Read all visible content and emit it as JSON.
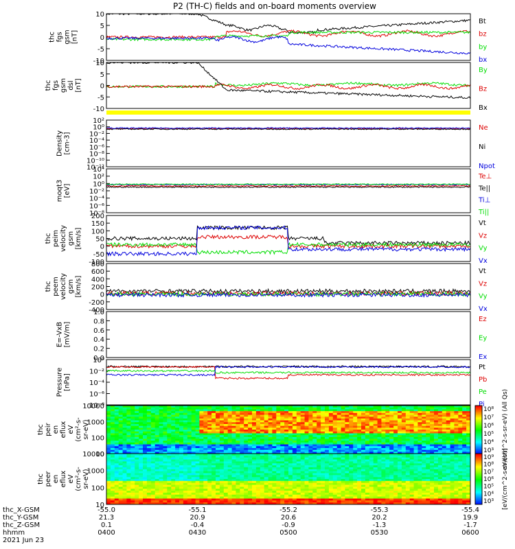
{
  "title": "P2 (TH-C) fields and on-board moments overview",
  "colors": {
    "black": "#000000",
    "red": "#dd0000",
    "green": "#00dd00",
    "blue": "#0000dd",
    "yellow": "#ffff00"
  },
  "chart_data": [
    {
      "type": "line",
      "panel": "fgs_gsm",
      "ylabel": [
        "thc",
        "fgs",
        "gsm",
        "[nT]"
      ],
      "ylim": [
        -10,
        10
      ],
      "yticks": [
        "10",
        "5",
        "0",
        "-5",
        "-10"
      ],
      "series": [
        {
          "name": "Bt",
          "color": "black"
        },
        {
          "name": "bz",
          "color": "red"
        },
        {
          "name": "by",
          "color": "green"
        },
        {
          "name": "bx",
          "color": "blue"
        }
      ]
    },
    {
      "type": "line",
      "panel": "fgs_gsm_dsl",
      "ylabel": [
        "thc",
        "fgs",
        "gsm",
        "dsl",
        "[nT]"
      ],
      "ylim": [
        -10,
        10
      ],
      "yticks": [
        "10",
        "5",
        "0",
        "-5",
        "-10"
      ],
      "series": [
        {
          "name": "By",
          "color": "green"
        },
        {
          "name": "Bz",
          "color": "red"
        },
        {
          "name": "Bx",
          "color": "black"
        }
      ]
    },
    {
      "type": "line",
      "panel": "density",
      "ylabel": [
        "Density",
        "[cm-3]"
      ],
      "log": true,
      "yticks": [
        "10²",
        "10⁰",
        "10⁻²",
        "10⁻⁴",
        "10⁻⁶",
        "10⁻⁸",
        "10⁻¹⁰",
        "10⁻¹²"
      ],
      "series": [
        {
          "name": "Ne",
          "color": "red"
        },
        {
          "name": "Ni",
          "color": "black"
        },
        {
          "name": "Npot",
          "color": "blue"
        }
      ]
    },
    {
      "type": "line",
      "panel": "moqt",
      "ylabel": [
        "moqt3",
        "[eV]"
      ],
      "log": true,
      "yticks": [
        "10⁴",
        "10²",
        "10⁰",
        "10⁻²",
        "10⁻⁴",
        "10⁻⁶",
        "10⁻⁸"
      ],
      "series": [
        {
          "name": "Te⊥",
          "color": "red"
        },
        {
          "name": "Te||",
          "color": "black"
        },
        {
          "name": "Ti⊥",
          "color": "blue"
        },
        {
          "name": "Ti||",
          "color": "green"
        }
      ]
    },
    {
      "type": "line",
      "panel": "peim_velocity",
      "ylabel": [
        "thc",
        "peim",
        "velocity",
        "gsm",
        "[km/s]"
      ],
      "ylim": [
        -100,
        200
      ],
      "yticks": [
        "200",
        "150",
        "100",
        "50",
        "0",
        "-50",
        "-100"
      ],
      "series": [
        {
          "name": "Vt",
          "color": "black"
        },
        {
          "name": "Vz",
          "color": "red"
        },
        {
          "name": "Vy",
          "color": "green"
        },
        {
          "name": "Vx",
          "color": "blue"
        }
      ]
    },
    {
      "type": "line",
      "panel": "peem_velocity",
      "ylabel": [
        "thc",
        "peem",
        "velocity",
        "gsm",
        "[km/s]"
      ],
      "ylim": [
        -400,
        800
      ],
      "yticks": [
        "800",
        "600",
        "400",
        "200",
        "0",
        "-200",
        "-400"
      ],
      "series": [
        {
          "name": "Vt",
          "color": "black"
        },
        {
          "name": "Vz",
          "color": "red"
        },
        {
          "name": "Vy",
          "color": "green"
        },
        {
          "name": "Vx",
          "color": "blue"
        }
      ]
    },
    {
      "type": "line",
      "panel": "efield",
      "ylabel": [
        "E=-VxB",
        "[mV/m]"
      ],
      "ylim": [
        0,
        1
      ],
      "yticks": [
        "1.0",
        "0.8",
        "0.6",
        "0.4",
        "0.2",
        "0.0"
      ],
      "series": [
        {
          "name": "Ez",
          "color": "red"
        },
        {
          "name": "Ey",
          "color": "green"
        },
        {
          "name": "Ex",
          "color": "blue"
        }
      ]
    },
    {
      "type": "line",
      "panel": "pressure",
      "ylabel": [
        "Pressure",
        "[nPa]"
      ],
      "log": true,
      "yticks": [
        "10⁰",
        "10⁻²",
        "10⁻⁴",
        "10⁻⁶",
        "10⁻⁸"
      ],
      "series": [
        {
          "name": "Pt",
          "color": "black"
        },
        {
          "name": "Pb",
          "color": "red"
        },
        {
          "name": "Pe",
          "color": "green"
        },
        {
          "name": "Pi",
          "color": "blue"
        }
      ]
    },
    {
      "type": "heatmap",
      "panel": "peir_eflux",
      "ylabel": [
        "thc",
        "peir",
        "en",
        "eflux",
        "eV",
        "(cm²-s-",
        "sr-eV)"
      ],
      "yticks": [
        "10000",
        "1000",
        "100",
        "10"
      ],
      "colorbar": {
        "ticks": [
          "10⁸",
          "10⁷",
          "10⁶",
          "10⁵",
          "10⁴",
          "10³"
        ],
        "label": "eV/(cm^2-s-sr-eV) (All Qs)"
      }
    },
    {
      "type": "heatmap",
      "panel": "peer_eflux",
      "ylabel": [
        "thc",
        "peer",
        "en",
        "eflux",
        "eV",
        "(cm²-s-",
        "sr-eV)"
      ],
      "yticks": [
        "10000",
        "1000",
        "100",
        "10"
      ],
      "colorbar": {
        "ticks": [
          "10⁹",
          "10⁸",
          "10⁷",
          "10⁶",
          "10⁵",
          "10⁴",
          "10³"
        ],
        "label": "[eV/(cm^2-s-sr-eV)]"
      }
    }
  ],
  "x_axis": {
    "row_labels": [
      "thc_X-GSM",
      "thc_Y-GSM",
      "thc_Z-GSM",
      "hhmm",
      "2021 Jun 23"
    ],
    "ticks": [
      {
        "x": "-55.0",
        "y": "21.3",
        "z": "0.1",
        "t": "0400"
      },
      {
        "x": "-55.1",
        "y": "20.9",
        "z": "-0.4",
        "t": "0430"
      },
      {
        "x": "-55.2",
        "y": "20.6",
        "z": "-0.9",
        "t": "0500"
      },
      {
        "x": "-55.3",
        "y": "20.2",
        "z": "-1.3",
        "t": "0530"
      },
      {
        "x": "-55.4",
        "y": "19.9",
        "z": "-1.7",
        "t": "0600"
      }
    ]
  }
}
